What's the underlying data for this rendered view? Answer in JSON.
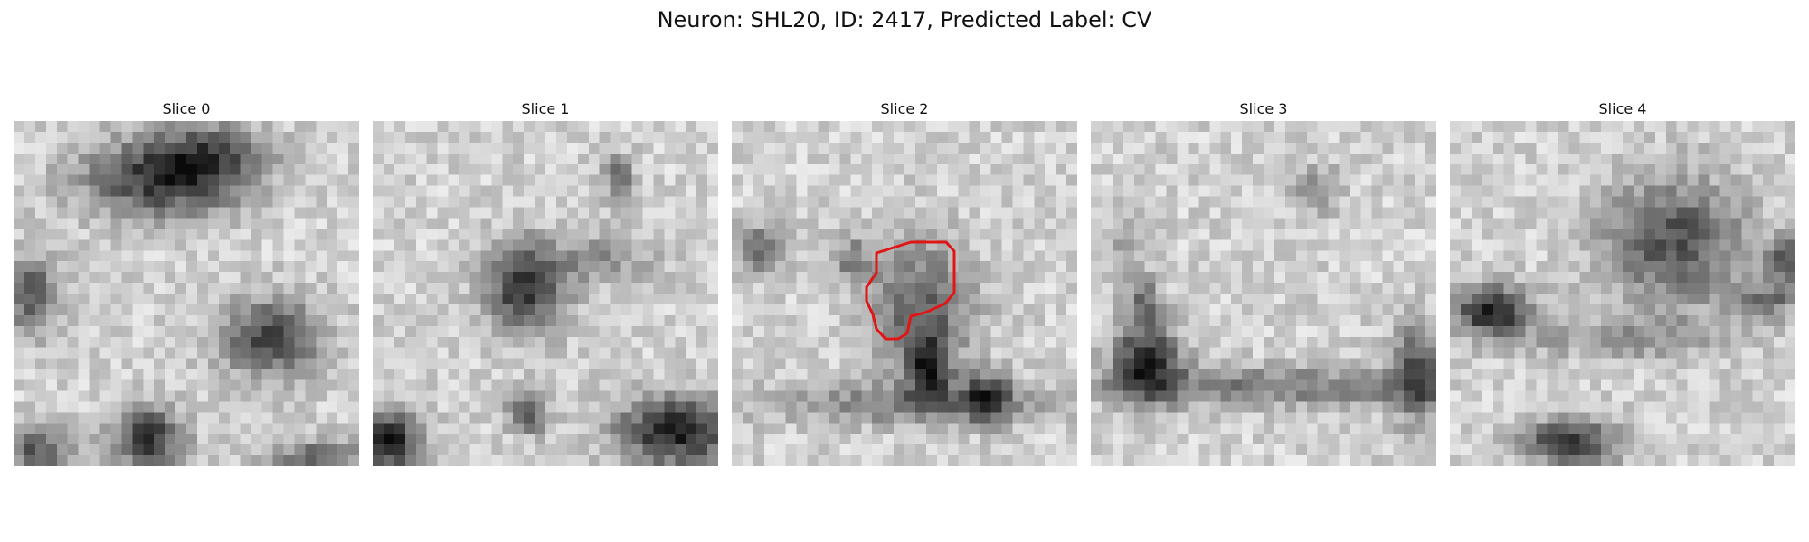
{
  "figure": {
    "title": "Neuron: SHL20, ID: 2417, Predicted Label: CV"
  },
  "panels": [
    {
      "title": "Slice 0"
    },
    {
      "title": "Slice 1"
    },
    {
      "title": "Slice 2"
    },
    {
      "title": "Slice 3"
    },
    {
      "title": "Slice 4"
    }
  ],
  "colors": {
    "contour": "#e01515",
    "background": "#ffffff"
  }
}
